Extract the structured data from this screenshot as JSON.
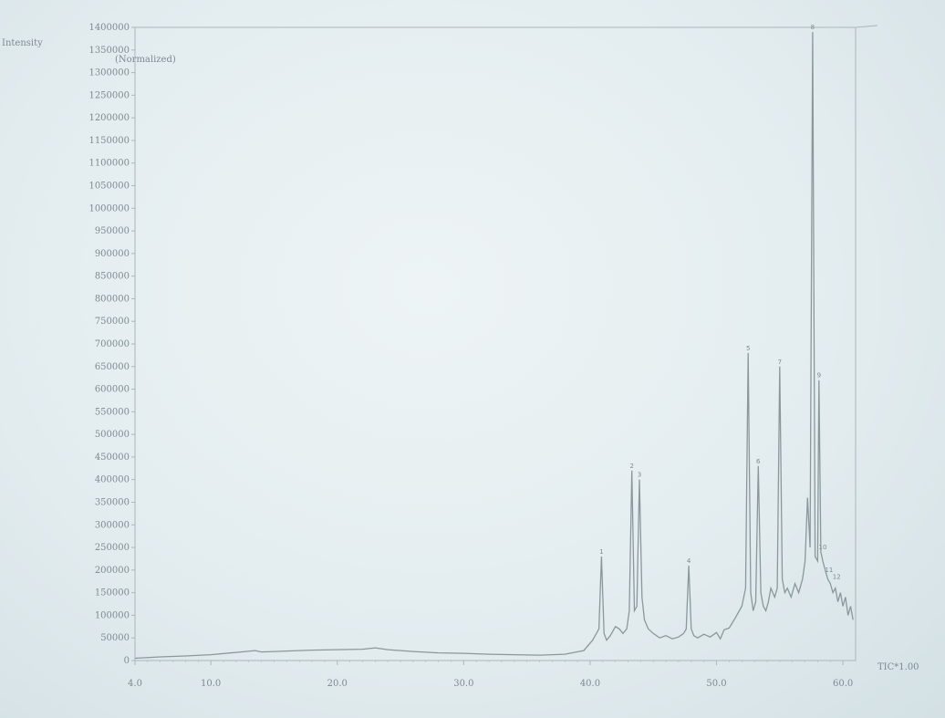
{
  "chart_data": {
    "type": "line",
    "ylabel": "Intensity",
    "normalized_label": "(Normalized)",
    "trace_label": "TIC*1.00",
    "xlim": [
      4.0,
      61.0
    ],
    "ylim": [
      0,
      1400000
    ],
    "x_ticks": [
      "4.0",
      "10.0",
      "20.0",
      "30.0",
      "40.0",
      "50.0",
      "60.0"
    ],
    "x_tick_values": [
      4,
      10,
      20,
      30,
      40,
      50,
      60
    ],
    "y_ticks": [
      "0",
      "50000",
      "100000",
      "150000",
      "200000",
      "250000",
      "300000",
      "350000",
      "400000",
      "450000",
      "500000",
      "550000",
      "600000",
      "650000",
      "700000",
      "750000",
      "800000",
      "850000",
      "900000",
      "950000",
      "1000000",
      "1050000",
      "1100000",
      "1150000",
      "1200000",
      "1250000",
      "1300000",
      "1350000",
      "1400000"
    ],
    "y_tick_values": [
      0,
      50000,
      100000,
      150000,
      200000,
      250000,
      300000,
      350000,
      400000,
      450000,
      500000,
      550000,
      600000,
      650000,
      700000,
      750000,
      800000,
      850000,
      900000,
      950000,
      1000000,
      1050000,
      1100000,
      1150000,
      1200000,
      1250000,
      1300000,
      1350000,
      1400000
    ],
    "grid": false,
    "series": [
      {
        "x": [
          4.0,
          6.0,
          8.0,
          10.0,
          12.0,
          13.5,
          14.0,
          16.0,
          18.0,
          20.0,
          22.0,
          23.0,
          24.0,
          26.0,
          28.0,
          30.0,
          32.0,
          34.0,
          36.0,
          38.0,
          39.5,
          40.2,
          40.7,
          40.9,
          41.1,
          41.3,
          41.6,
          42.0,
          42.3,
          42.6,
          42.9,
          43.1,
          43.3,
          43.5,
          43.7,
          43.9,
          44.1,
          44.3,
          44.6,
          45.0,
          45.5,
          46.0,
          46.5,
          47.0,
          47.4,
          47.6,
          47.8,
          48.0,
          48.2,
          48.5,
          49.0,
          49.5,
          50.0,
          50.3,
          50.6,
          51.0,
          51.5,
          52.0,
          52.3,
          52.5,
          52.7,
          52.9,
          53.1,
          53.3,
          53.5,
          53.7,
          53.9,
          54.1,
          54.3,
          54.6,
          54.8,
          55.0,
          55.2,
          55.4,
          55.6,
          55.9,
          56.2,
          56.5,
          56.8,
          57.0,
          57.2,
          57.4,
          57.6,
          57.8,
          58.0,
          58.1,
          58.25,
          58.4,
          58.6,
          58.8,
          59.0,
          59.2,
          59.4,
          59.6,
          59.8,
          60.0,
          60.2,
          60.4,
          60.6,
          60.8
        ],
        "y": [
          5000,
          8000,
          10000,
          13000,
          18000,
          22000,
          19000,
          21000,
          23000,
          24000,
          25000,
          28000,
          24000,
          20000,
          17000,
          16000,
          14000,
          13000,
          12000,
          14000,
          22000,
          45000,
          70000,
          230000,
          60000,
          45000,
          55000,
          75000,
          70000,
          60000,
          70000,
          110000,
          420000,
          110000,
          120000,
          400000,
          140000,
          90000,
          70000,
          60000,
          50000,
          55000,
          48000,
          52000,
          60000,
          70000,
          210000,
          70000,
          55000,
          50000,
          58000,
          52000,
          62000,
          48000,
          68000,
          72000,
          95000,
          120000,
          160000,
          680000,
          150000,
          110000,
          130000,
          430000,
          150000,
          120000,
          110000,
          130000,
          160000,
          140000,
          160000,
          650000,
          180000,
          150000,
          160000,
          140000,
          170000,
          150000,
          180000,
          220000,
          360000,
          250000,
          1390000,
          230000,
          220000,
          620000,
          240000,
          220000,
          200000,
          180000,
          170000,
          150000,
          160000,
          130000,
          150000,
          120000,
          140000,
          100000,
          120000,
          90000
        ]
      }
    ],
    "peak_labels": [
      {
        "x": 40.9,
        "y": 230000,
        "text": "1"
      },
      {
        "x": 43.3,
        "y": 420000,
        "text": "2"
      },
      {
        "x": 43.9,
        "y": 400000,
        "text": "3"
      },
      {
        "x": 47.8,
        "y": 210000,
        "text": "4"
      },
      {
        "x": 52.5,
        "y": 680000,
        "text": "5"
      },
      {
        "x": 53.3,
        "y": 430000,
        "text": "6"
      },
      {
        "x": 55.0,
        "y": 650000,
        "text": "7"
      },
      {
        "x": 57.6,
        "y": 1390000,
        "text": "8"
      },
      {
        "x": 58.1,
        "y": 620000,
        "text": "9"
      },
      {
        "x": 58.4,
        "y": 240000,
        "text": "10"
      },
      {
        "x": 58.9,
        "y": 190000,
        "text": "11"
      },
      {
        "x": 59.5,
        "y": 175000,
        "text": "12"
      }
    ],
    "line_color": "#8a989c",
    "axis_color": "#aab6ba"
  }
}
